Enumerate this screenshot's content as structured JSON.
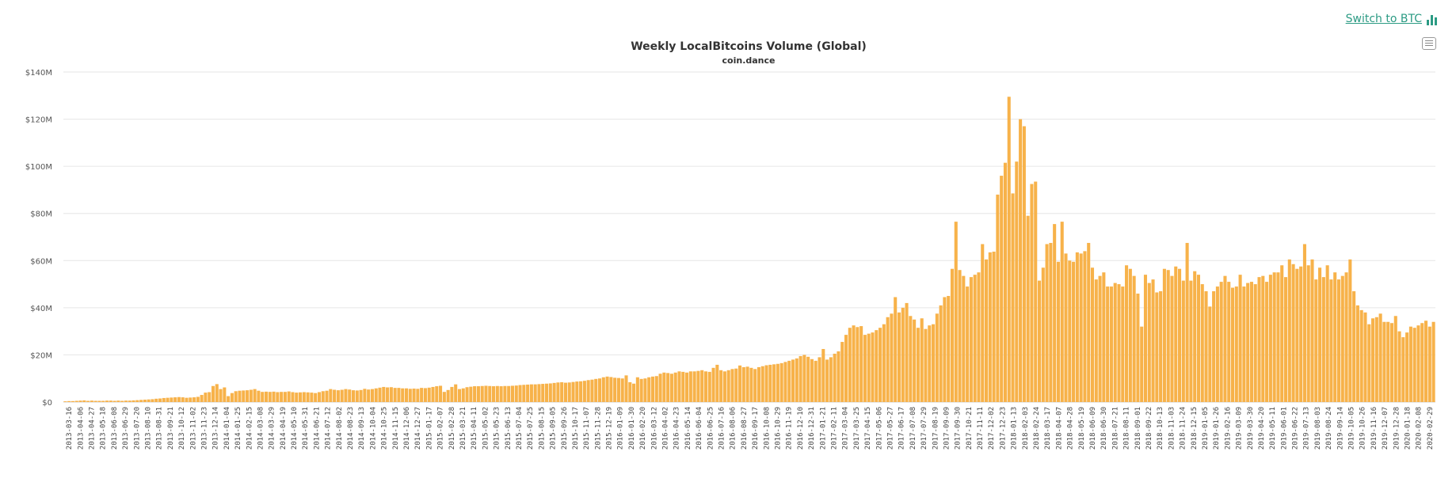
{
  "header": {
    "switch_label": "Switch to BTC",
    "accent_color": "#2c9b84"
  },
  "chart_data": {
    "type": "bar",
    "title": "Weekly LocalBitcoins Volume (Global)",
    "subtitle": "coin.dance",
    "bar_color": "#f7b24a",
    "ylim": [
      0,
      140
    ],
    "y_ticks": [
      "$0",
      "$20M",
      "$40M",
      "$60M",
      "$80M",
      "$100M",
      "$120M",
      "$140M"
    ],
    "y_tick_values": [
      0,
      20,
      40,
      60,
      80,
      100,
      120,
      140
    ],
    "x_tick_labels": [
      "2013-03-16",
      "2013-04-06",
      "2013-04-27",
      "2013-05-18",
      "2013-06-08",
      "2013-06-29",
      "2013-07-20",
      "2013-08-10",
      "2013-08-31",
      "2013-09-21",
      "2013-10-12",
      "2013-11-02",
      "2013-11-23",
      "2013-12-14",
      "2014-01-04",
      "2014-01-25",
      "2014-02-15",
      "2014-03-08",
      "2014-03-29",
      "2014-04-19",
      "2014-05-10",
      "2014-05-31",
      "2014-06-21",
      "2014-07-12",
      "2014-08-02",
      "2014-08-23",
      "2014-09-13",
      "2014-10-04",
      "2014-10-25",
      "2014-11-15",
      "2014-12-06",
      "2014-12-27",
      "2015-01-17",
      "2015-02-07",
      "2015-02-28",
      "2015-03-21",
      "2015-04-11",
      "2015-05-02",
      "2015-05-23",
      "2015-06-13",
      "2015-07-04",
      "2015-07-25",
      "2015-08-15",
      "2015-09-05",
      "2015-09-26",
      "2015-10-17",
      "2015-11-07",
      "2015-11-28",
      "2015-12-19",
      "2016-01-09",
      "2016-01-30",
      "2016-02-20",
      "2016-03-12",
      "2016-04-02",
      "2016-04-23",
      "2016-05-14",
      "2016-06-04",
      "2016-06-25",
      "2016-07-16",
      "2016-08-06",
      "2016-08-27",
      "2016-09-17",
      "2016-10-08",
      "2016-10-29",
      "2016-11-19",
      "2016-12-10",
      "2016-12-31",
      "2017-01-21",
      "2017-02-11",
      "2017-03-04",
      "2017-03-25",
      "2017-04-15",
      "2017-05-06",
      "2017-05-27",
      "2017-06-17",
      "2017-07-08",
      "2017-07-29",
      "2017-08-19",
      "2017-09-09",
      "2017-09-30",
      "2017-10-21",
      "2017-11-11",
      "2017-12-02",
      "2017-12-23",
      "2018-01-13",
      "2018-02-03",
      "2018-02-24",
      "2018-03-17",
      "2018-04-07",
      "2018-04-28",
      "2018-05-19",
      "2018-06-09",
      "2018-06-30",
      "2018-07-21",
      "2018-08-11",
      "2018-09-01",
      "2018-09-22",
      "2018-10-13",
      "2018-11-03",
      "2018-11-24",
      "2018-12-15",
      "2019-01-05",
      "2019-01-26",
      "2019-02-16",
      "2019-03-09",
      "2019-03-30",
      "2019-04-20",
      "2019-05-11",
      "2019-06-01",
      "2019-06-22",
      "2019-07-13",
      "2019-08-03",
      "2019-08-24",
      "2019-09-14",
      "2019-10-05",
      "2019-10-26",
      "2019-11-16",
      "2019-12-07",
      "2019-12-28",
      "2020-01-18",
      "2020-02-08",
      "2020-02-29"
    ],
    "values": [
      0.3,
      0.4,
      0.4,
      0.5,
      0.6,
      0.7,
      0.5,
      0.6,
      0.5,
      0.5,
      0.5,
      0.6,
      0.6,
      0.5,
      0.6,
      0.5,
      0.6,
      0.6,
      0.7,
      0.8,
      0.9,
      1.0,
      1.1,
      1.2,
      1.4,
      1.5,
      1.7,
      1.8,
      1.9,
      2.0,
      2.1,
      2.0,
      1.8,
      1.9,
      2.0,
      2.2,
      3.0,
      4.0,
      4.2,
      6.8,
      7.6,
      5.5,
      6.2,
      2.5,
      3.8,
      4.6,
      4.8,
      4.9,
      5.0,
      5.2,
      5.5,
      4.8,
      4.3,
      4.4,
      4.3,
      4.4,
      4.2,
      4.3,
      4.3,
      4.5,
      4.2,
      4.0,
      4.1,
      4.2,
      4.1,
      4.0,
      3.8,
      4.2,
      4.6,
      4.8,
      5.5,
      5.2,
      5.0,
      5.2,
      5.5,
      5.3,
      5.0,
      4.9,
      5.1,
      5.6,
      5.3,
      5.5,
      5.8,
      6.1,
      6.4,
      6.2,
      6.3,
      6.0,
      6.0,
      5.8,
      5.8,
      5.6,
      5.7,
      5.6,
      6.0,
      5.9,
      6.1,
      6.4,
      6.7,
      6.9,
      4.3,
      5.1,
      6.4,
      7.5,
      5.5,
      5.8,
      6.3,
      6.5,
      6.7,
      6.7,
      6.8,
      6.9,
      6.8,
      6.7,
      6.8,
      6.7,
      6.8,
      6.8,
      6.9,
      7.0,
      7.2,
      7.3,
      7.4,
      7.5,
      7.5,
      7.6,
      7.7,
      7.8,
      7.9,
      8.1,
      8.3,
      8.4,
      8.2,
      8.3,
      8.5,
      8.7,
      8.8,
      9.0,
      9.3,
      9.5,
      9.8,
      10.0,
      10.5,
      10.8,
      10.6,
      10.3,
      10.2,
      10.0,
      11.3,
      8.4,
      7.8,
      10.5,
      9.8,
      10.0,
      10.5,
      10.8,
      11.0,
      12.0,
      12.5,
      12.3,
      12.0,
      12.5,
      13.0,
      12.8,
      12.5,
      13.0,
      13.0,
      13.2,
      13.5,
      13.0,
      12.8,
      14.5,
      15.8,
      13.5,
      13.0,
      13.5,
      14.0,
      14.2,
      15.5,
      14.8,
      15.0,
      14.5,
      14.0,
      14.8,
      15.2,
      15.6,
      15.8,
      16.0,
      16.2,
      16.5,
      17.0,
      17.5,
      18.0,
      18.5,
      19.5,
      20.0,
      19.2,
      18.2,
      17.5,
      19.0,
      22.5,
      18.0,
      19.0,
      20.5,
      21.5,
      25.5,
      28.5,
      31.5,
      32.5,
      31.8,
      32.2,
      28.5,
      29.0,
      29.5,
      30.5,
      31.5,
      33.0,
      36.0,
      37.5,
      44.5,
      38.0,
      40.0,
      42.0,
      36.5,
      35.0,
      31.5,
      35.5,
      31.0,
      32.5,
      33.0,
      37.5,
      41.0,
      44.5,
      45.0,
      56.5,
      76.5,
      56.0,
      53.5,
      49.0,
      53.0,
      54.0,
      55.0,
      67.0,
      60.5,
      63.5,
      63.8,
      88.0,
      96.0,
      101.5,
      129.5,
      88.5,
      102.0,
      120.0,
      117.0,
      79.0,
      92.5,
      93.5,
      51.5,
      57.0,
      67.0,
      67.5,
      75.5,
      59.5,
      76.5,
      63.0,
      60.0,
      59.5,
      63.5,
      63.0,
      64.0,
      67.5,
      57.0,
      52.0,
      53.5,
      55.0,
      49.0,
      49.0,
      50.5,
      50.0,
      49.0,
      58.0,
      56.5,
      53.5,
      46.0,
      32.0,
      54.0,
      50.5,
      52.0,
      46.5,
      47.0,
      56.5,
      56.0,
      53.5,
      57.5,
      56.5,
      51.5,
      67.5,
      51.5,
      55.5,
      54.0,
      50.0,
      47.0,
      40.5,
      47.0,
      49.0,
      51.0,
      53.5,
      51.0,
      48.5,
      49.0,
      54.0,
      49.0,
      50.5,
      51.0,
      50.0,
      53.0,
      53.5,
      51.0,
      54.0,
      55.0,
      55.0,
      58.0,
      53.0,
      60.5,
      58.5,
      56.5,
      57.5,
      67.0,
      58.0,
      60.5,
      52.0,
      57.0,
      53.0,
      58.0,
      52.0,
      55.0,
      52.0,
      53.5,
      55.0,
      60.5,
      47.0,
      41.0,
      39.0,
      38.0,
      33.0,
      35.5,
      36.0,
      37.5,
      34.0,
      34.0,
      33.5,
      36.5,
      30.0,
      27.5,
      29.5,
      32.0,
      31.5,
      32.5,
      33.5,
      34.5,
      32.0,
      34.0
    ]
  }
}
